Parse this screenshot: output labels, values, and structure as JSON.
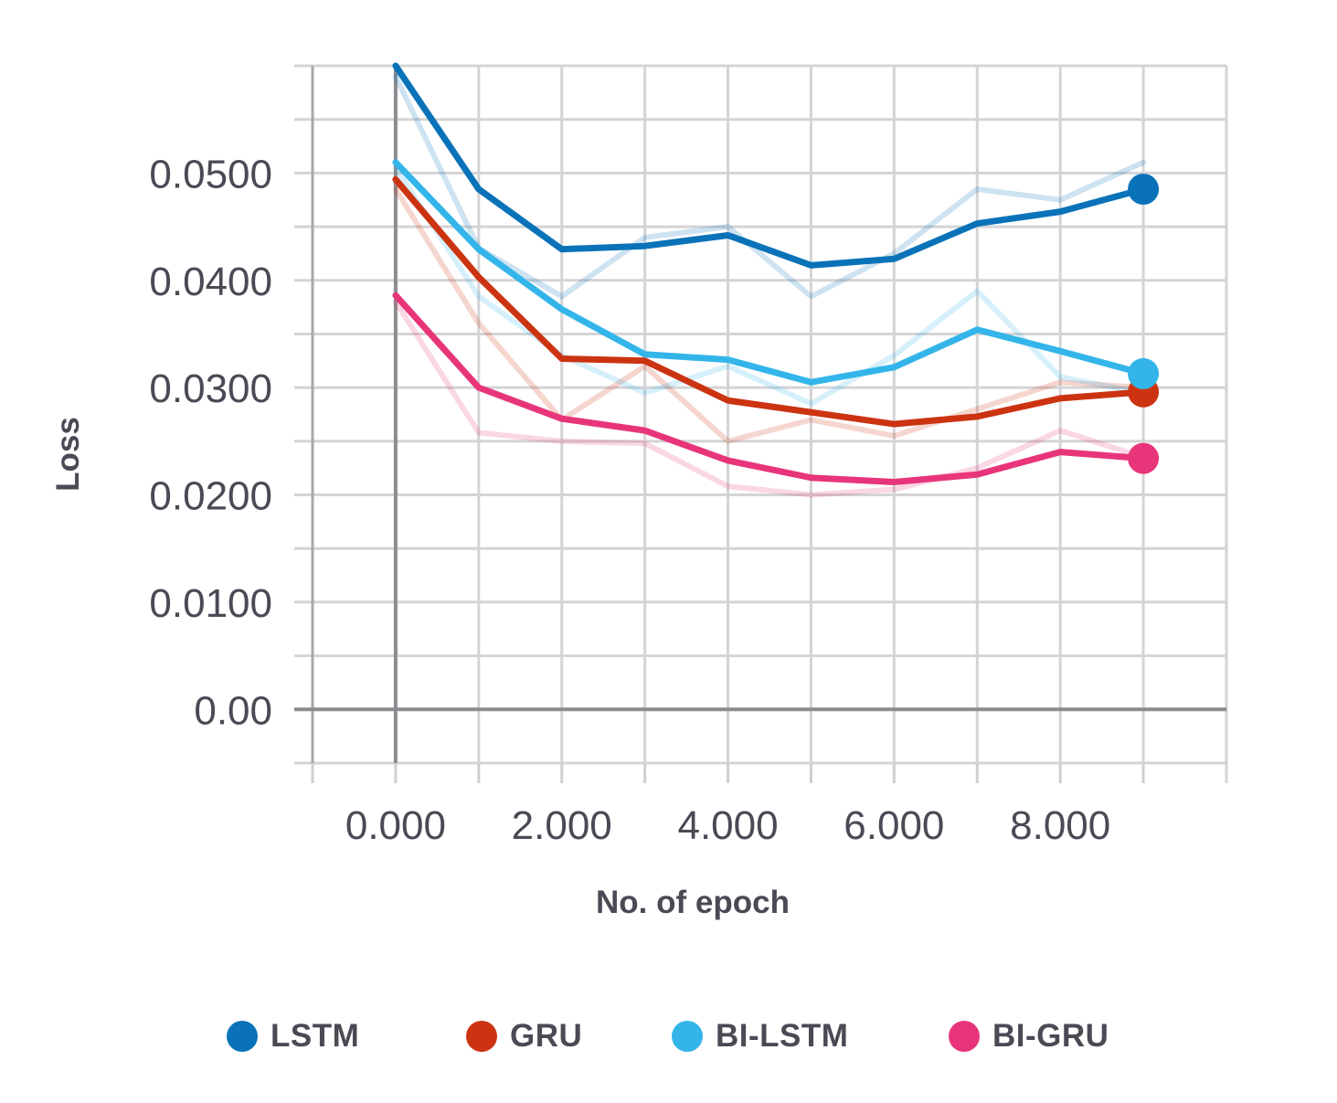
{
  "chart_data": {
    "type": "line",
    "title": "",
    "xlabel": "No. of epoch",
    "ylabel": "Loss",
    "xlim": [
      -1000,
      10000
    ],
    "ylim": [
      -0.005,
      0.06
    ],
    "grid": true,
    "x_ticks": [
      "0.000",
      "2.000",
      "4.000",
      "6.000",
      "8.000"
    ],
    "x_tick_values": [
      0,
      2000,
      4000,
      6000,
      8000
    ],
    "y_ticks": [
      "0.00",
      "0.0100",
      "0.0200",
      "0.0300",
      "0.0400",
      "0.0500"
    ],
    "y_tick_values": [
      0,
      0.01,
      0.02,
      0.03,
      0.04,
      0.05
    ],
    "x": [
      0,
      1000,
      2000,
      3000,
      4000,
      5000,
      6000,
      7000,
      8000,
      9000
    ],
    "series": [
      {
        "name": "LSTM",
        "color": "#0a72b8",
        "values": [
          0.06,
          0.0485,
          0.0429,
          0.0432,
          0.0442,
          0.0414,
          0.042,
          0.0453,
          0.0464,
          0.0485
        ],
        "raw_values": [
          0.059,
          0.043,
          0.0385,
          0.044,
          0.045,
          0.0385,
          0.0425,
          0.0485,
          0.0475,
          0.051
        ]
      },
      {
        "name": "GRU",
        "color": "#cc3311",
        "values": [
          0.0494,
          0.0403,
          0.0327,
          0.0325,
          0.0288,
          0.0277,
          0.0266,
          0.0273,
          0.029,
          0.0296
        ],
        "raw_values": [
          0.0485,
          0.036,
          0.027,
          0.032,
          0.025,
          0.027,
          0.0255,
          0.028,
          0.0305,
          0.03
        ]
      },
      {
        "name": "BI-LSTM",
        "color": "#33b5ea",
        "values": [
          0.051,
          0.0429,
          0.0373,
          0.0331,
          0.0326,
          0.0305,
          0.0319,
          0.0354,
          0.0334,
          0.0313
        ],
        "raw_values": [
          0.0505,
          0.0385,
          0.033,
          0.0295,
          0.032,
          0.0285,
          0.033,
          0.039,
          0.031,
          0.0295
        ]
      },
      {
        "name": "BI-GRU",
        "color": "#e8357a",
        "values": [
          0.0386,
          0.03,
          0.0271,
          0.026,
          0.0232,
          0.0216,
          0.0212,
          0.0219,
          0.024,
          0.0234
        ],
        "raw_values": [
          0.038,
          0.0258,
          0.025,
          0.0248,
          0.0208,
          0.02,
          0.0205,
          0.0225,
          0.026,
          0.0235
        ]
      }
    ]
  },
  "legend": {
    "items": [
      {
        "label": "LSTM",
        "color": "#0a72b8"
      },
      {
        "label": "GRU",
        "color": "#cc3311"
      },
      {
        "label": "BI-LSTM",
        "color": "#33b5ea"
      },
      {
        "label": "BI-GRU",
        "color": "#e8357a"
      }
    ]
  }
}
